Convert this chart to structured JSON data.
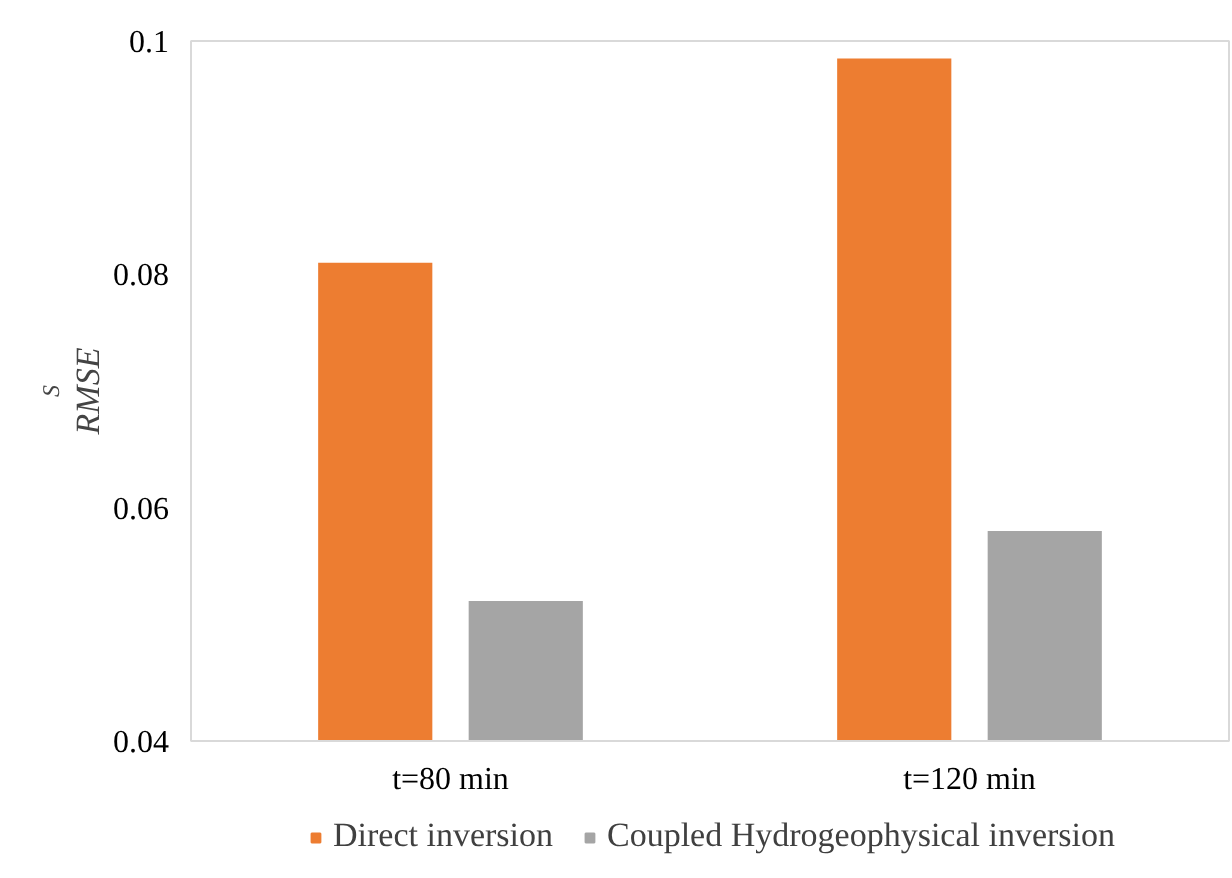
{
  "chart_data": {
    "type": "bar",
    "ylabel": "RMSE$_{S}$",
    "categories": [
      "t=80 min",
      "t=120 min"
    ],
    "series": [
      {
        "name": "Direct inversion",
        "color": "#ed7d31",
        "values": [
          0.081,
          0.0985
        ]
      },
      {
        "name": "Coupled Hydrogeophysical inversion",
        "color": "#a5a5a5",
        "values": [
          0.052,
          0.058
        ]
      }
    ],
    "ylim": [
      0.04,
      0.1
    ],
    "yticks": [
      0.04,
      0.06,
      0.08,
      0.1
    ],
    "grid": false,
    "legend": "bottom"
  }
}
